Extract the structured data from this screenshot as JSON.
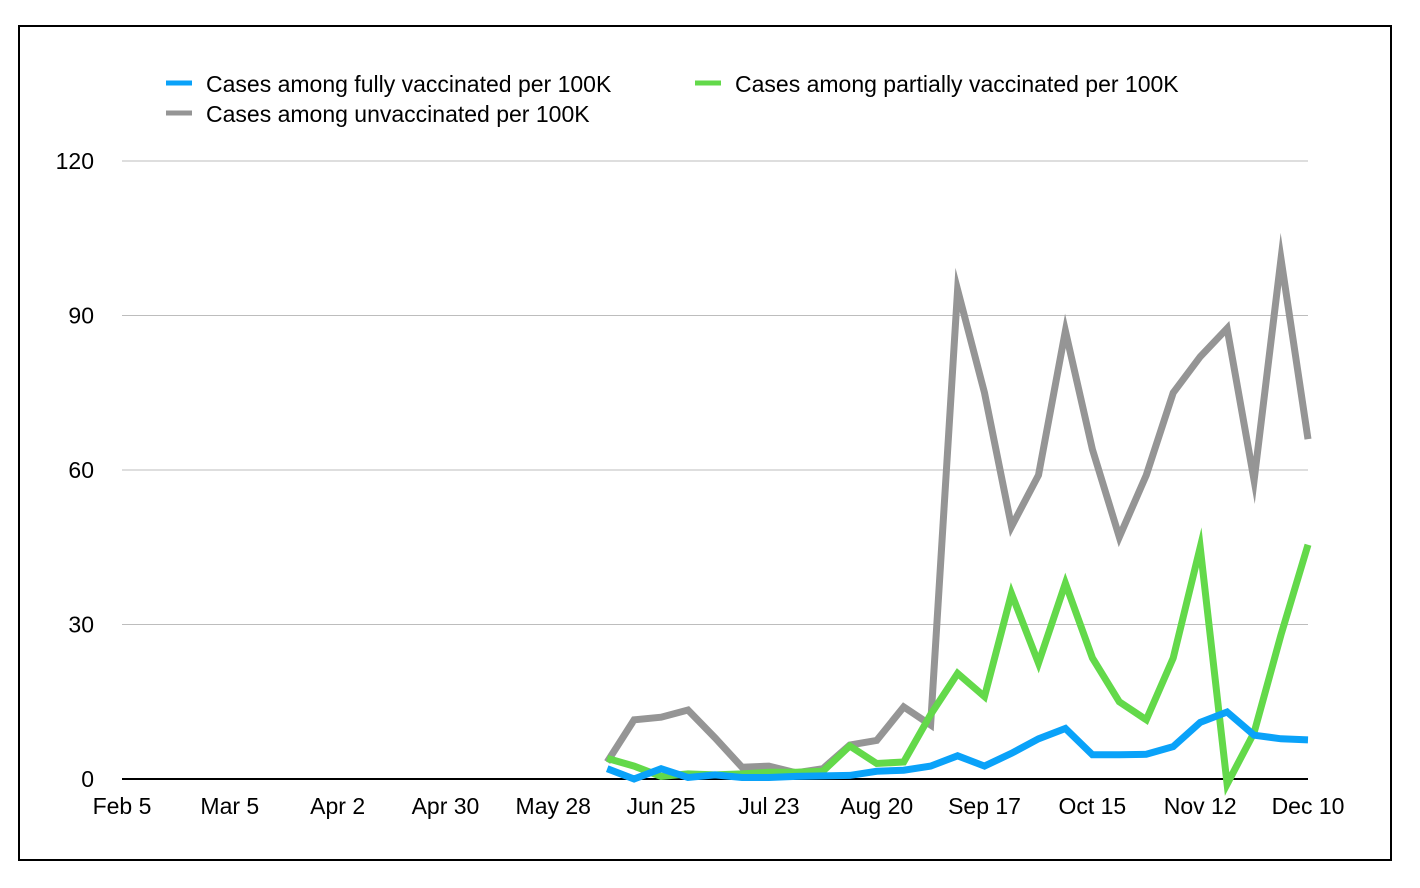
{
  "chart_data": {
    "type": "line",
    "title": "",
    "xlabel": "",
    "ylabel": "",
    "ylim": [
      0,
      120
    ],
    "yticks": [
      0,
      30,
      60,
      90,
      120
    ],
    "x_tick_labels": [
      "Feb 5",
      "Mar 5",
      "Apr 2",
      "Apr 30",
      "May 28",
      "Jun 25",
      "Jul 23",
      "Aug 20",
      "Sep 17",
      "Oct 15",
      "Nov 12",
      "Dec 10"
    ],
    "x_weeks_total": 44,
    "x_data_start_week": 18,
    "x": [
      "Jun 11",
      "Jun 18",
      "Jun 25",
      "Jul 2",
      "Jul 9",
      "Jul 16",
      "Jul 23",
      "Jul 30",
      "Aug 6",
      "Aug 13",
      "Aug 20",
      "Aug 27",
      "Sep 3",
      "Sep 10",
      "Sep 17",
      "Sep 24",
      "Oct 1",
      "Oct 8",
      "Oct 15",
      "Oct 22",
      "Oct 29",
      "Nov 5",
      "Nov 12",
      "Nov 19",
      "Nov 26",
      "Dec 3",
      "Dec 10"
    ],
    "grid": true,
    "legend_position": "top",
    "series": [
      {
        "name": "Cases among unvaccinated per 100K",
        "color": "#959595",
        "values": [
          3.3,
          11.5,
          12,
          13.4,
          8,
          2.3,
          2.5,
          1.2,
          2,
          6.6,
          7.5,
          14,
          10.5,
          95,
          75,
          49,
          59,
          87,
          64,
          47,
          59,
          75,
          82,
          87.5,
          58,
          101,
          66
        ]
      },
      {
        "name": "Cases among partially vaccinated per 100K",
        "color": "#63d94a",
        "values": [
          4,
          2.5,
          0.5,
          1,
          0.8,
          1,
          1.3,
          1.3,
          1.5,
          6.4,
          3,
          3.3,
          12.5,
          20.5,
          16,
          36,
          22.5,
          38,
          23.5,
          15,
          11.5,
          23.5,
          45,
          -1,
          9,
          28,
          45.5
        ]
      },
      {
        "name": "Cases among fully vaccinated per 100K",
        "color": "#0aa2f9",
        "values": [
          2,
          0,
          2,
          0.3,
          0.8,
          0.3,
          0.3,
          0.5,
          0.6,
          0.7,
          1.5,
          1.7,
          2.5,
          4.5,
          2.5,
          5,
          7.8,
          9.8,
          4.7,
          4.7,
          4.8,
          6.3,
          11,
          13,
          8.5,
          7.8,
          7.6
        ]
      }
    ],
    "legend_order": [
      2,
      1,
      0
    ]
  }
}
